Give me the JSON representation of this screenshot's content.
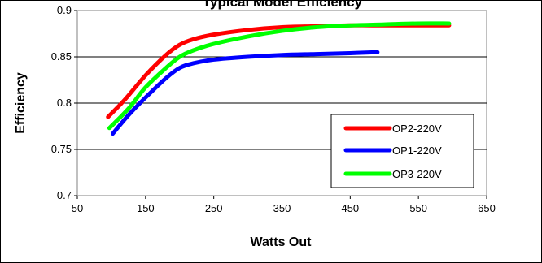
{
  "chart_data": {
    "type": "line",
    "title": "Typical Model Efficiency",
    "xlabel": "Watts Out",
    "ylabel": "Efficiency",
    "xlim": [
      50,
      650
    ],
    "ylim": [
      0.7,
      0.9
    ],
    "x_ticks": [
      50,
      150,
      250,
      350,
      450,
      550,
      650
    ],
    "y_ticks": [
      0.7,
      0.75,
      0.8,
      0.85,
      0.9
    ],
    "x_tick_labels": [
      "50",
      "150",
      "250",
      "350",
      "450",
      "550",
      "650"
    ],
    "y_tick_labels": [
      "0.7",
      "0.75",
      "0.8",
      "0.85",
      "0.9"
    ],
    "grid": "horizontal",
    "legend_position": "bottom-right",
    "series": [
      {
        "name": "OP2-220V",
        "color": "#ff0000",
        "x": [
          95,
          120,
          150,
          180,
          200,
          220,
          250,
          300,
          350,
          400,
          450,
          500,
          550,
          595
        ],
        "y": [
          0.785,
          0.804,
          0.83,
          0.852,
          0.863,
          0.869,
          0.874,
          0.879,
          0.882,
          0.883,
          0.884,
          0.884,
          0.884,
          0.884
        ]
      },
      {
        "name": "OP1-220V",
        "color": "#0000ff",
        "x": [
          102,
          125,
          150,
          180,
          200,
          220,
          250,
          300,
          350,
          400,
          450,
          490
        ],
        "y": [
          0.767,
          0.787,
          0.806,
          0.827,
          0.838,
          0.843,
          0.847,
          0.85,
          0.852,
          0.853,
          0.854,
          0.855
        ]
      },
      {
        "name": "OP3-220V",
        "color": "#00ff00",
        "x": [
          97,
          125,
          150,
          180,
          200,
          220,
          250,
          300,
          350,
          400,
          450,
          500,
          550,
          595
        ],
        "y": [
          0.773,
          0.794,
          0.817,
          0.838,
          0.85,
          0.857,
          0.864,
          0.872,
          0.878,
          0.882,
          0.884,
          0.885,
          0.886,
          0.886
        ]
      }
    ]
  }
}
